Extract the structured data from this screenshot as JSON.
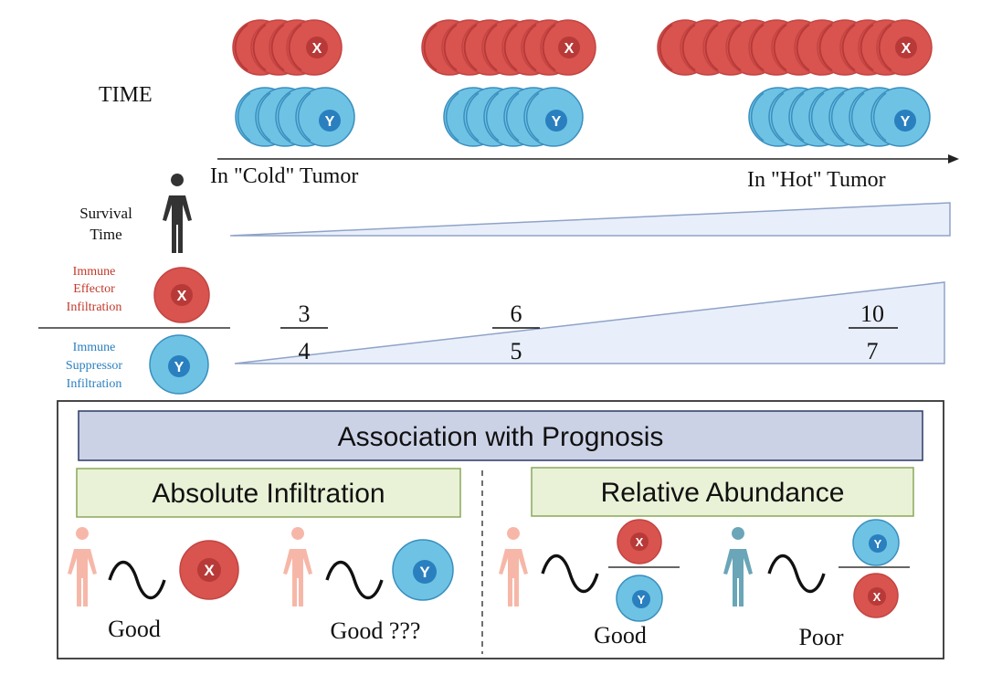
{
  "time_label": "TIME",
  "cold_label": "In \"Cold\" Tumor",
  "hot_label": "In \"Hot\" Tumor",
  "survival_label_line1": "Survival",
  "survival_label_line2": "Time",
  "effector_label": [
    "Immune",
    "Effector",
    "Infiltration"
  ],
  "suppressor_label": [
    "Immune",
    "Suppressor",
    "Infiltration"
  ],
  "cell_x_letter": "X",
  "cell_y_letter": "Y",
  "ratios": [
    {
      "numerator": "3",
      "denominator": "4"
    },
    {
      "numerator": "6",
      "denominator": "5"
    },
    {
      "numerator": "10",
      "denominator": "7"
    }
  ],
  "prognosis_title": "Association with Prognosis",
  "absolute_title": "Absolute Infiltration",
  "relative_title": "Relative Abundance",
  "outcomes": [
    "Good",
    "Good ???",
    "Good",
    "Poor"
  ],
  "colors": {
    "red_cell": "#d9534f",
    "red_cell_dark": "#b83a38",
    "blue_cell": "#6ec3e4",
    "blue_cell_dark": "#3a8fbf",
    "wedge_fill": "#e8effa",
    "wedge_stroke": "#8fa3c8",
    "title_fill": "#ccd2e6",
    "title_stroke": "#2b3a67",
    "header_fill": "#e9f2d6",
    "header_stroke": "#8aa85a",
    "human_dark": "#333333",
    "human_pink": "#f7b7a8",
    "human_blue": "#6aa5b8",
    "effector_text": "#c0392b",
    "suppressor_text": "#2a7fbf"
  }
}
